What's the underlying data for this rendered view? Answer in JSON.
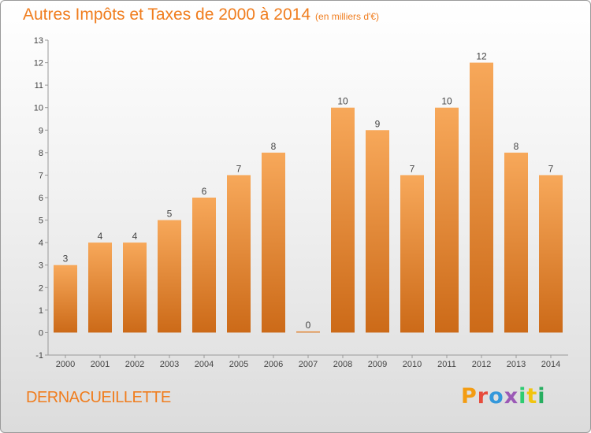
{
  "title": "Autres Impôts et Taxes de 2000 à 2014",
  "unit": "(en milliers d'€)",
  "place": "DERNACUEILLETTE",
  "logo": [
    "P",
    "r",
    "o",
    "x",
    "i",
    "t",
    "i"
  ],
  "logo_colors": [
    "#f39c12",
    "#e74c3c",
    "#3498db",
    "#9b59b6",
    "#2ecc71",
    "#f1c40f",
    "#27ae60"
  ],
  "colors": {
    "bar_light": "#f7a85a",
    "bar_dark": "#cc6a18",
    "title": "#f07d1e"
  },
  "chart_data": {
    "type": "bar",
    "categories": [
      "2000",
      "2001",
      "2002",
      "2003",
      "2004",
      "2005",
      "2006",
      "2007",
      "2008",
      "2009",
      "2010",
      "2011",
      "2012",
      "2013",
      "2014"
    ],
    "values": [
      3,
      4,
      4,
      5,
      6,
      7,
      8,
      0,
      10,
      9,
      7,
      10,
      12,
      8,
      7
    ],
    "ylim": [
      -1,
      13
    ],
    "yticks": [
      "-1",
      "0",
      "1",
      "2",
      "3",
      "4",
      "5",
      "6",
      "7",
      "8",
      "9",
      "10",
      "11",
      "12",
      "13"
    ],
    "grid": false
  }
}
